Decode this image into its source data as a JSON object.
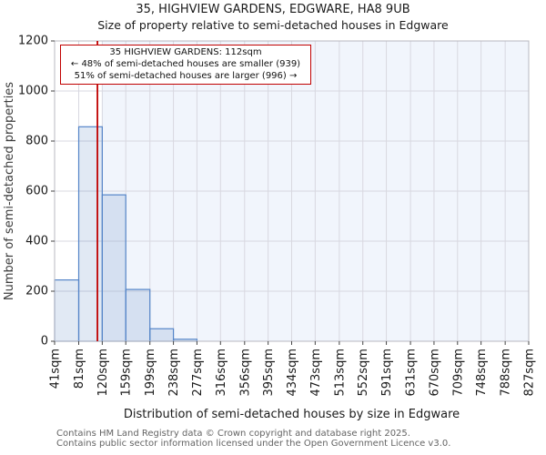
{
  "chart_data": {
    "type": "bar",
    "subtype": "histogram",
    "title": "35, HIGHVIEW GARDENS, EDGWARE, HA8 9UB",
    "subtitle": "Size of property relative to semi-detached houses in Edgware",
    "xlabel": "Distribution of semi-detached houses by size in Edgware",
    "ylabel": "Number of semi-detached properties",
    "categories": [
      "41sqm",
      "81sqm",
      "120sqm",
      "159sqm",
      "199sqm",
      "238sqm",
      "277sqm",
      "316sqm",
      "356sqm",
      "395sqm",
      "434sqm",
      "473sqm",
      "513sqm",
      "552sqm",
      "591sqm",
      "631sqm",
      "670sqm",
      "709sqm",
      "748sqm",
      "788sqm",
      "827sqm"
    ],
    "bin_edges_sqm": [
      41,
      81,
      120,
      159,
      199,
      238,
      277,
      316,
      356,
      395,
      434,
      473,
      513,
      552,
      591,
      631,
      670,
      709,
      748,
      788,
      827
    ],
    "values": [
      245,
      857,
      585,
      207,
      50,
      8,
      0,
      0,
      0,
      0,
      0,
      0,
      0,
      0,
      0,
      0,
      0,
      0,
      0,
      0
    ],
    "ylim": [
      0,
      1200
    ],
    "yticks": [
      0,
      200,
      400,
      600,
      800,
      1000,
      1200
    ],
    "grid": true,
    "legend": "none",
    "marker": {
      "label": "35 HIGHVIEW GARDENS",
      "size_sqm": 112
    },
    "highlight_region": {
      "from_sqm": 120,
      "to_sqm": 827
    },
    "colors": {
      "highlight_bg": "#f1f5fc",
      "bar_fill": "#4f7bbe",
      "bar_fill_opacity": "0.17",
      "bar_stroke": "#5585c8",
      "grid": "#d8d8e0",
      "spine": "#b8b8c0",
      "tick": "#444444",
      "tick_text": "#1a1a1a",
      "marker_line": "#c00000"
    }
  },
  "annotation": {
    "line1": "35 HIGHVIEW GARDENS: 112sqm",
    "line2": "← 48% of semi-detached houses are smaller (939)",
    "line3": "51% of semi-detached houses are larger (996) →"
  },
  "footer": {
    "line1": "Contains HM Land Registry data © Crown copyright and database right 2025.",
    "line2": "Contains public sector information licensed under the Open Government Licence v3.0."
  }
}
